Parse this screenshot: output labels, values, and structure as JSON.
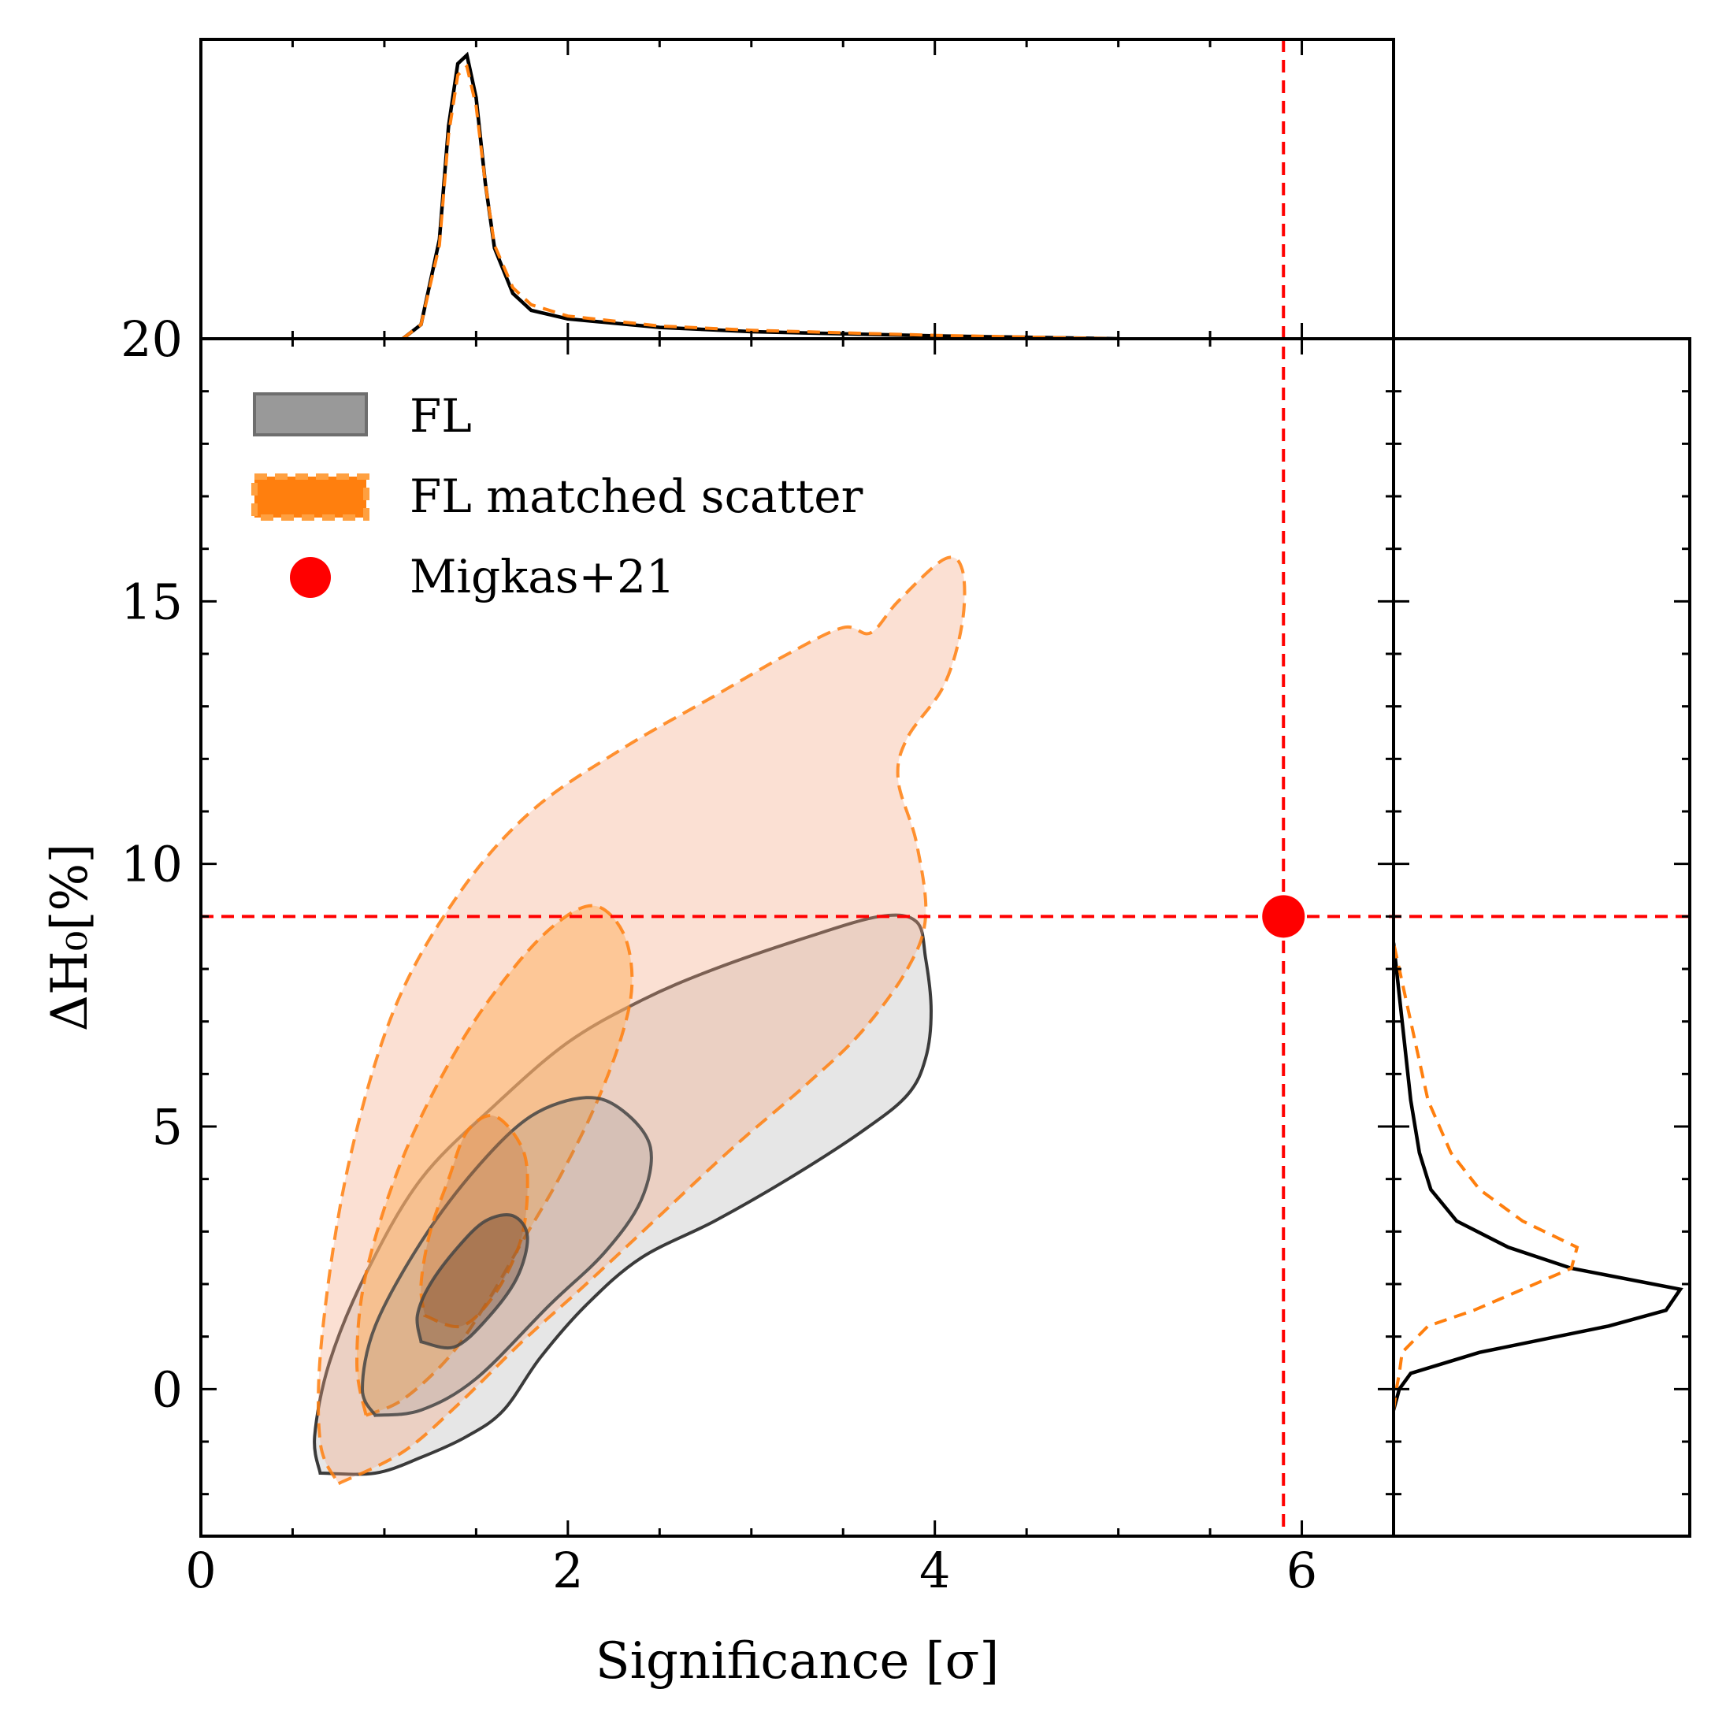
{
  "chart_data": {
    "type": "contour",
    "xlabel": "Significance [σ]",
    "ylabel": "ΔH₀[%]",
    "xlim": [
      0,
      6.5
    ],
    "ylim": [
      -2.8,
      20
    ],
    "x_ticks": [
      0,
      2,
      4,
      6
    ],
    "y_ticks": [
      0,
      5,
      10,
      15,
      20
    ],
    "x_tick_labels": [
      "0",
      "2",
      "4",
      "6"
    ],
    "y_tick_labels": [
      "0",
      "5",
      "10",
      "15",
      "20"
    ],
    "grid": false,
    "legend_position": "top-left",
    "legend": [
      {
        "label": "FL",
        "style": "filled-solid",
        "color": "#999999"
      },
      {
        "label": "FL matched scatter",
        "style": "filled-dashed",
        "color": "#ff7f0e"
      },
      {
        "label": "Migkas+21",
        "style": "marker",
        "color": "#ff0000"
      }
    ],
    "colors": {
      "fl_fill": "#808080",
      "fl_line": "#1a1a1a",
      "matched_fill": "#f4a582",
      "matched_inner_fill": "#ffb366",
      "matched_line": "#ff7f0e",
      "reference": "#ff0000"
    },
    "reference_point": {
      "x": 5.9,
      "y": 9.0
    },
    "reference_lines": {
      "x": 5.9,
      "y": 9.0
    },
    "contours": [
      {
        "series": "FL",
        "level": "outer",
        "points": [
          [
            0.65,
            -1.6
          ],
          [
            0.95,
            -1.6
          ],
          [
            1.2,
            -1.3
          ],
          [
            1.45,
            -0.9
          ],
          [
            1.65,
            -0.4
          ],
          [
            1.85,
            0.6
          ],
          [
            2.1,
            1.6
          ],
          [
            2.4,
            2.5
          ],
          [
            2.8,
            3.2
          ],
          [
            3.2,
            4.0
          ],
          [
            3.6,
            4.9
          ],
          [
            3.85,
            5.6
          ],
          [
            3.95,
            6.3
          ],
          [
            3.98,
            7.2
          ],
          [
            3.95,
            8.2
          ],
          [
            3.9,
            8.9
          ],
          [
            3.7,
            9.0
          ],
          [
            3.3,
            8.6
          ],
          [
            2.8,
            8.0
          ],
          [
            2.4,
            7.4
          ],
          [
            2.0,
            6.6
          ],
          [
            1.6,
            5.4
          ],
          [
            1.2,
            4.0
          ],
          [
            0.9,
            2.2
          ],
          [
            0.7,
            0.5
          ],
          [
            0.62,
            -0.9
          ],
          [
            0.65,
            -1.6
          ]
        ]
      },
      {
        "series": "FL",
        "level": "middle",
        "points": [
          [
            0.95,
            -0.5
          ],
          [
            1.2,
            -0.4
          ],
          [
            1.5,
            0.2
          ],
          [
            1.9,
            1.6
          ],
          [
            2.2,
            2.6
          ],
          [
            2.4,
            3.6
          ],
          [
            2.45,
            4.6
          ],
          [
            2.3,
            5.3
          ],
          [
            2.1,
            5.55
          ],
          [
            1.8,
            5.2
          ],
          [
            1.5,
            4.2
          ],
          [
            1.2,
            2.8
          ],
          [
            0.95,
            1.2
          ],
          [
            0.88,
            0.0
          ],
          [
            0.95,
            -0.5
          ]
        ]
      },
      {
        "series": "FL",
        "level": "inner",
        "points": [
          [
            1.2,
            0.9
          ],
          [
            1.38,
            0.8
          ],
          [
            1.55,
            1.3
          ],
          [
            1.72,
            2.1
          ],
          [
            1.78,
            2.9
          ],
          [
            1.7,
            3.3
          ],
          [
            1.55,
            3.2
          ],
          [
            1.4,
            2.7
          ],
          [
            1.25,
            2.0
          ],
          [
            1.18,
            1.4
          ],
          [
            1.2,
            0.9
          ]
        ]
      },
      {
        "series": "FL matched scatter",
        "level": "outer",
        "points": [
          [
            0.75,
            -1.8
          ],
          [
            1.1,
            -1.2
          ],
          [
            1.4,
            -0.3
          ],
          [
            1.75,
            0.9
          ],
          [
            2.1,
            2.0
          ],
          [
            2.5,
            3.3
          ],
          [
            2.9,
            4.6
          ],
          [
            3.3,
            5.8
          ],
          [
            3.6,
            6.8
          ],
          [
            3.85,
            8.0
          ],
          [
            3.95,
            9.0
          ],
          [
            3.9,
            10.4
          ],
          [
            3.8,
            11.6
          ],
          [
            3.85,
            12.4
          ],
          [
            4.05,
            13.4
          ],
          [
            4.15,
            14.6
          ],
          [
            4.15,
            15.6
          ],
          [
            4.05,
            15.8
          ],
          [
            3.8,
            15.0
          ],
          [
            3.65,
            14.4
          ],
          [
            3.5,
            14.5
          ],
          [
            3.2,
            14.0
          ],
          [
            2.8,
            13.2
          ],
          [
            2.3,
            12.2
          ],
          [
            1.8,
            11.0
          ],
          [
            1.4,
            9.4
          ],
          [
            1.05,
            7.2
          ],
          [
            0.8,
            4.2
          ],
          [
            0.66,
            1.0
          ],
          [
            0.65,
            -1.0
          ],
          [
            0.75,
            -1.8
          ]
        ]
      },
      {
        "series": "FL matched scatter",
        "level": "middle",
        "points": [
          [
            0.9,
            -0.5
          ],
          [
            1.1,
            -0.2
          ],
          [
            1.35,
            0.6
          ],
          [
            1.55,
            1.6
          ],
          [
            1.75,
            2.8
          ],
          [
            1.95,
            4.0
          ],
          [
            2.15,
            5.4
          ],
          [
            2.3,
            6.8
          ],
          [
            2.35,
            7.8
          ],
          [
            2.3,
            8.7
          ],
          [
            2.15,
            9.2
          ],
          [
            1.95,
            8.9
          ],
          [
            1.7,
            8.0
          ],
          [
            1.4,
            6.5
          ],
          [
            1.1,
            4.4
          ],
          [
            0.9,
            2.2
          ],
          [
            0.85,
            0.5
          ],
          [
            0.9,
            -0.5
          ]
        ]
      },
      {
        "series": "FL matched scatter",
        "level": "inner",
        "points": [
          [
            1.22,
            1.4
          ],
          [
            1.42,
            1.2
          ],
          [
            1.6,
            1.8
          ],
          [
            1.74,
            2.8
          ],
          [
            1.78,
            3.8
          ],
          [
            1.75,
            4.6
          ],
          [
            1.6,
            5.2
          ],
          [
            1.45,
            4.9
          ],
          [
            1.35,
            4.0
          ],
          [
            1.25,
            3.0
          ],
          [
            1.2,
            2.0
          ],
          [
            1.22,
            1.4
          ]
        ]
      }
    ],
    "marginals": {
      "top": {
        "x": [
          1.1,
          1.2,
          1.3,
          1.35,
          1.4,
          1.45,
          1.5,
          1.55,
          1.6,
          1.7,
          1.8,
          2.0,
          2.5,
          3.0,
          4.0,
          5.0
        ],
        "FL": [
          0.0,
          0.05,
          0.35,
          0.75,
          0.97,
          1.0,
          0.85,
          0.55,
          0.32,
          0.16,
          0.1,
          0.07,
          0.04,
          0.025,
          0.01,
          0.0
        ],
        "FL matched scatter": [
          0.0,
          0.05,
          0.33,
          0.72,
          0.93,
          0.96,
          0.82,
          0.55,
          0.33,
          0.18,
          0.12,
          0.08,
          0.045,
          0.03,
          0.012,
          0.0
        ]
      },
      "right": {
        "y": [
          -0.4,
          0.0,
          0.3,
          0.7,
          1.2,
          1.5,
          1.9,
          2.3,
          2.7,
          3.2,
          3.8,
          4.5,
          5.5,
          7.0,
          8.5
        ],
        "FL": [
          0.0,
          0.02,
          0.06,
          0.3,
          0.75,
          0.95,
          1.0,
          0.62,
          0.4,
          0.22,
          0.13,
          0.09,
          0.06,
          0.03,
          0.0
        ],
        "FL matched scatter": [
          0.0,
          0.01,
          0.02,
          0.03,
          0.12,
          0.28,
          0.45,
          0.62,
          0.64,
          0.45,
          0.3,
          0.2,
          0.12,
          0.06,
          0.0
        ]
      }
    }
  }
}
